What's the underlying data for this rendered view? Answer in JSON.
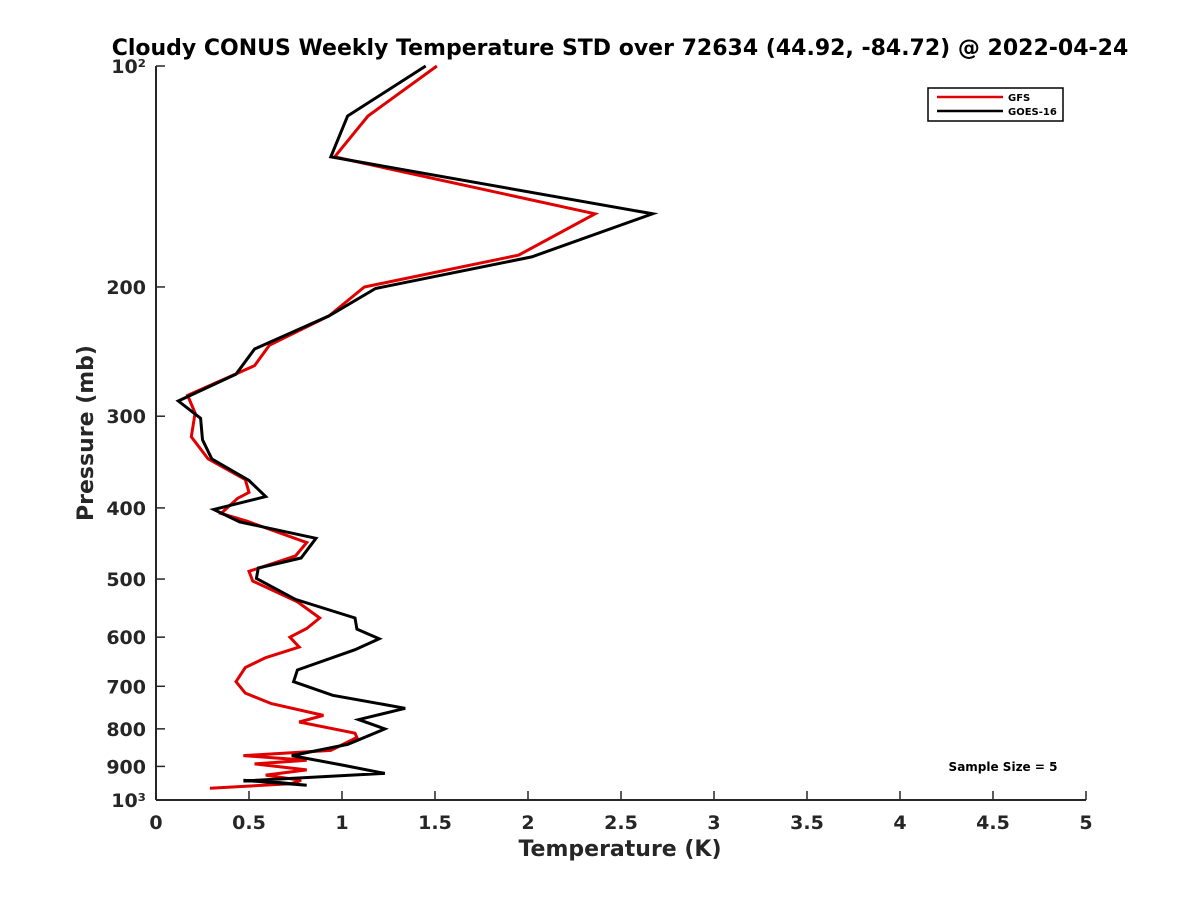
{
  "chart_data": {
    "type": "line",
    "title": "Cloudy CONUS Weekly Temperature STD over 72634 (44.92, -84.72) @ 2022-04-24",
    "xlabel": "Temperature (K)",
    "ylabel": "Pressure (mb)",
    "xlim": [
      0,
      5
    ],
    "ylim": [
      1000,
      100
    ],
    "yscale": "log",
    "y_reversed": true,
    "grid": false,
    "legend_position": "top-right",
    "x_ticks": [
      0,
      0.5,
      1,
      1.5,
      2,
      2.5,
      3,
      3.5,
      4,
      4.5,
      5
    ],
    "x_tick_labels": [
      "0",
      "0.5",
      "1",
      "1.5",
      "2",
      "2.5",
      "3",
      "3.5",
      "4",
      "4.5",
      "5"
    ],
    "y_ticks": [
      100,
      200,
      300,
      400,
      500,
      600,
      700,
      800,
      900,
      1000
    ],
    "y_tick_labels": [
      "10²",
      "200",
      "300",
      "400",
      "500",
      "600",
      "700",
      "800",
      "900",
      "10³"
    ],
    "annotation": "Sample Size = 5",
    "series": [
      {
        "name": "GFS",
        "color": "#e00000",
        "points": [
          [
            1.51,
            100
          ],
          [
            1.14,
            117
          ],
          [
            0.96,
            133
          ],
          [
            2.36,
            159
          ],
          [
            1.95,
            181
          ],
          [
            1.12,
            200
          ],
          [
            0.93,
            219
          ],
          [
            0.61,
            240
          ],
          [
            0.53,
            256
          ],
          [
            0.17,
            281
          ],
          [
            0.21,
            297
          ],
          [
            0.19,
            320
          ],
          [
            0.28,
            343
          ],
          [
            0.48,
            366
          ],
          [
            0.5,
            381
          ],
          [
            0.44,
            388
          ],
          [
            0.35,
            407
          ],
          [
            0.49,
            417
          ],
          [
            0.81,
            446
          ],
          [
            0.75,
            465
          ],
          [
            0.5,
            488
          ],
          [
            0.52,
            503
          ],
          [
            0.76,
            537
          ],
          [
            0.88,
            565
          ],
          [
            0.81,
            584
          ],
          [
            0.72,
            600
          ],
          [
            0.77,
            619
          ],
          [
            0.59,
            640
          ],
          [
            0.48,
            660
          ],
          [
            0.43,
            690
          ],
          [
            0.48,
            715
          ],
          [
            0.62,
            739
          ],
          [
            0.9,
            767
          ],
          [
            0.77,
            783
          ],
          [
            1.07,
            811
          ],
          [
            1.08,
            822
          ],
          [
            0.94,
            856
          ],
          [
            0.47,
            870
          ],
          [
            0.81,
            883
          ],
          [
            0.53,
            893
          ],
          [
            0.81,
            910
          ],
          [
            0.59,
            925
          ],
          [
            0.78,
            940
          ],
          [
            0.73,
            950
          ],
          [
            0.29,
            964
          ]
        ]
      },
      {
        "name": "GOES-16",
        "color": "#000000",
        "points": [
          [
            1.45,
            100
          ],
          [
            1.03,
            117
          ],
          [
            0.94,
            133
          ],
          [
            2.67,
            159
          ],
          [
            2.02,
            182
          ],
          [
            1.18,
            201
          ],
          [
            0.93,
            219
          ],
          [
            0.53,
            243
          ],
          [
            0.43,
            263
          ],
          [
            0.12,
            286
          ],
          [
            0.24,
            302
          ],
          [
            0.25,
            323
          ],
          [
            0.3,
            343
          ],
          [
            0.5,
            367
          ],
          [
            0.59,
            386
          ],
          [
            0.31,
            402
          ],
          [
            0.45,
            418
          ],
          [
            0.86,
            440
          ],
          [
            0.78,
            468
          ],
          [
            0.55,
            483
          ],
          [
            0.54,
            499
          ],
          [
            0.75,
            533
          ],
          [
            1.07,
            565
          ],
          [
            1.08,
            585
          ],
          [
            1.2,
            603
          ],
          [
            1.07,
            624
          ],
          [
            0.76,
            665
          ],
          [
            0.74,
            690
          ],
          [
            0.95,
            720
          ],
          [
            1.34,
            750
          ],
          [
            1.09,
            777
          ],
          [
            1.23,
            800
          ],
          [
            1.03,
            840
          ],
          [
            0.73,
            870
          ],
          [
            1.0,
            896
          ],
          [
            1.23,
            920
          ],
          [
            0.47,
            942
          ],
          [
            0.58,
            942
          ],
          [
            0.81,
            955
          ],
          [
            0.47,
            940
          ]
        ]
      }
    ]
  }
}
